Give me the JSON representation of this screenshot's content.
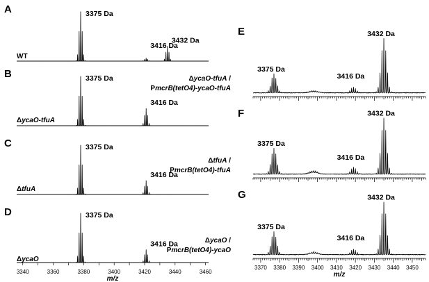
{
  "chart_data": [
    {
      "panel": "A",
      "type": "line",
      "xlim": [
        3336,
        3462
      ],
      "strain": [
        {
          "text": "WT",
          "italic": false
        }
      ],
      "peaks": [
        {
          "center": 3378,
          "height": 1.0,
          "label": "3375 Da"
        },
        {
          "center": 3421,
          "height": 0.06,
          "label": "3416 Da"
        },
        {
          "center": 3435,
          "height": 0.3,
          "label": "3432 Da"
        }
      ]
    },
    {
      "panel": "B",
      "type": "line",
      "xlim": [
        3336,
        3462
      ],
      "strain": [
        {
          "text": "Δ",
          "italic": false
        },
        {
          "text": "ycaO-tfuA",
          "italic": true
        }
      ],
      "peaks": [
        {
          "center": 3378,
          "height": 1.0,
          "label": "3375 Da"
        },
        {
          "center": 3421,
          "height": 0.35,
          "label": "3416 Da"
        }
      ]
    },
    {
      "panel": "C",
      "type": "line",
      "xlim": [
        3336,
        3462
      ],
      "strain": [
        {
          "text": "Δ",
          "italic": false
        },
        {
          "text": "tfuA",
          "italic": true
        }
      ],
      "peaks": [
        {
          "center": 3378,
          "height": 1.0,
          "label": "3375 Da"
        },
        {
          "center": 3421,
          "height": 0.28,
          "label": "3416 Da"
        }
      ]
    },
    {
      "panel": "D",
      "type": "line",
      "xlim": [
        3336,
        3462
      ],
      "strain": [
        {
          "text": "Δ",
          "italic": false
        },
        {
          "text": "ycaO",
          "italic": true
        }
      ],
      "peaks": [
        {
          "center": 3378,
          "height": 1.0,
          "label": "3375 Da"
        },
        {
          "center": 3421,
          "height": 0.26,
          "label": "3416 Da"
        }
      ],
      "x_axis": {
        "ticks": [
          3340,
          3350,
          3360,
          3370,
          3380,
          3390,
          3400,
          3410,
          3420,
          3430,
          3440,
          3450,
          3460
        ],
        "labeled_ticks": [
          3340,
          3360,
          3380,
          3400,
          3420,
          3440,
          3460
        ],
        "label": "m/z"
      }
    },
    {
      "panel": "E",
      "type": "line",
      "xlim": [
        3366,
        3457
      ],
      "strain": [
        {
          "text": "Δ",
          "italic": false
        },
        {
          "text": "ycaO-tfuA",
          "italic": true
        },
        {
          "text": " /",
          "italic": false
        },
        {
          "br": true
        },
        {
          "text": "P",
          "italic": false
        },
        {
          "text": "mcrB(tetO4)-ycaO-tfuA",
          "italic": true
        }
      ],
      "peaks": [
        {
          "center": 3377,
          "height": 0.33,
          "label": "3375 Da"
        },
        {
          "center": 3419,
          "height": 0.1,
          "label": "3416 Da"
        },
        {
          "center": 3435,
          "height": 0.95,
          "label": "3432 Da"
        }
      ],
      "humps": [
        {
          "center": 3398,
          "height": 0.04
        }
      ]
    },
    {
      "panel": "F",
      "type": "line",
      "xlim": [
        3366,
        3457
      ],
      "strain": [
        {
          "text": "Δ",
          "italic": false
        },
        {
          "text": "tfuA",
          "italic": true
        },
        {
          "text": " /",
          "italic": false
        },
        {
          "br": true
        },
        {
          "text": "P",
          "italic": false
        },
        {
          "text": "mcrB(tetO4)-tfuA",
          "italic": true
        }
      ],
      "peaks": [
        {
          "center": 3377,
          "height": 0.45,
          "label": "3375 Da"
        },
        {
          "center": 3419,
          "height": 0.12,
          "label": "3416 Da"
        },
        {
          "center": 3435,
          "height": 0.98,
          "label": "3432 Da"
        }
      ],
      "humps": [
        {
          "center": 3398,
          "height": 0.06
        }
      ]
    },
    {
      "panel": "G",
      "type": "line",
      "xlim": [
        3366,
        3457
      ],
      "strain": [
        {
          "text": "Δ",
          "italic": false
        },
        {
          "text": "ycaO",
          "italic": true
        },
        {
          "text": " /",
          "italic": false
        },
        {
          "br": true
        },
        {
          "text": "P",
          "italic": false
        },
        {
          "text": "mcrB(tetO4)-ycaO",
          "italic": true
        }
      ],
      "peaks": [
        {
          "center": 3377,
          "height": 0.4,
          "label": "3375 Da"
        },
        {
          "center": 3419,
          "height": 0.1,
          "label": "3416 Da"
        },
        {
          "center": 3435,
          "height": 0.92,
          "label": "3432 Da"
        }
      ],
      "humps": [
        {
          "center": 3398,
          "height": 0.05
        }
      ],
      "x_axis": {
        "ticks": [
          3370,
          3380,
          3390,
          3400,
          3410,
          3420,
          3430,
          3440,
          3450
        ],
        "labeled_ticks": [
          3370,
          3380,
          3390,
          3400,
          3410,
          3420,
          3430,
          3440,
          3450
        ],
        "label": "m/z"
      }
    }
  ]
}
